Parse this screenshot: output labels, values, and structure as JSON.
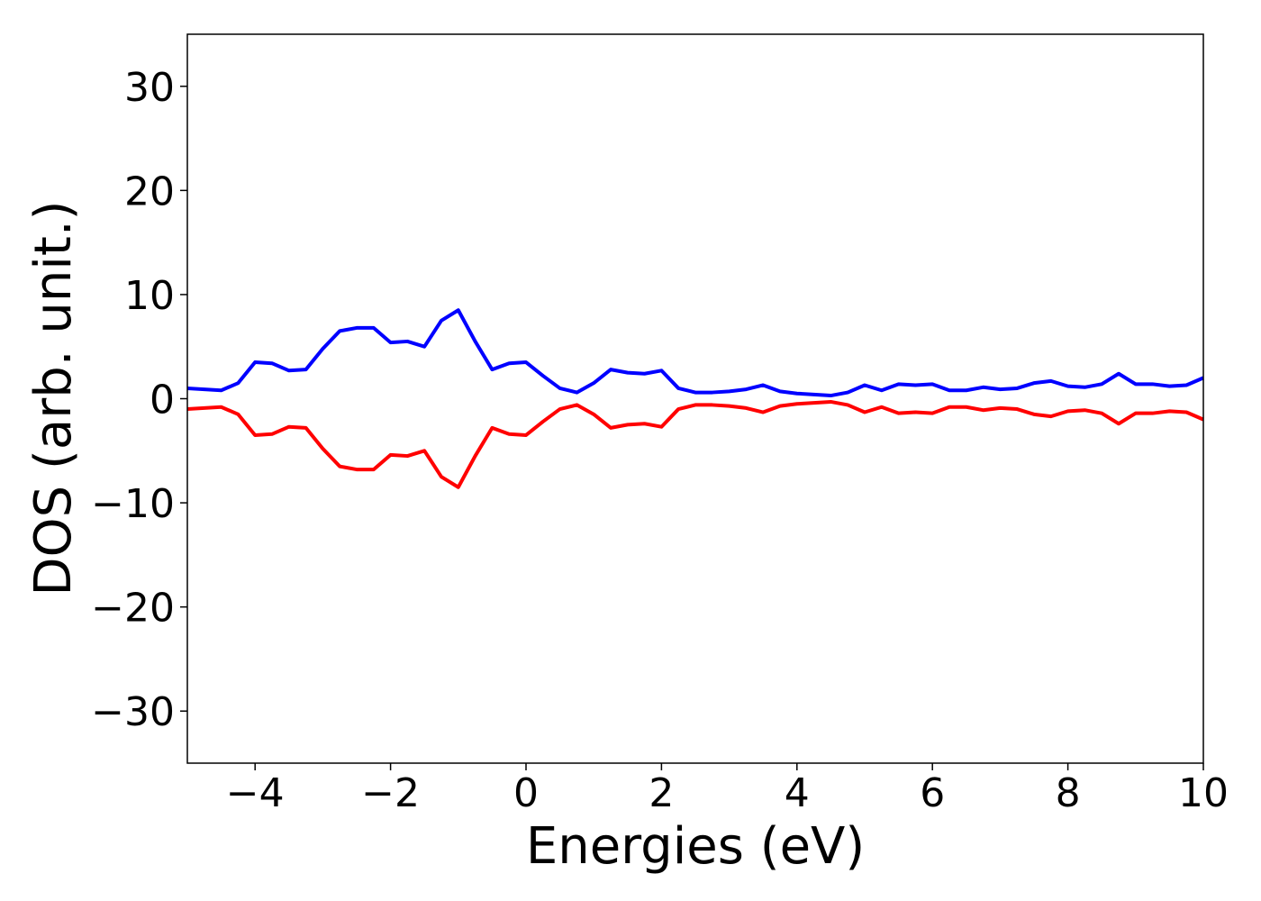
{
  "chart_data": {
    "type": "line",
    "xlabel": "Energies (eV)",
    "ylabel": "DOS (arb. unit.)",
    "x": [
      -5,
      -4.75,
      -4.5,
      -4.25,
      -4,
      -3.75,
      -3.5,
      -3.25,
      -3,
      -2.75,
      -2.5,
      -2.25,
      -2,
      -1.75,
      -1.5,
      -1.25,
      -1,
      -0.75,
      -0.5,
      -0.25,
      0,
      0.25,
      0.5,
      0.75,
      1,
      1.25,
      1.5,
      1.75,
      2,
      2.25,
      2.5,
      2.75,
      3,
      3.25,
      3.5,
      3.75,
      4,
      4.25,
      4.5,
      4.75,
      5,
      5.25,
      5.5,
      5.75,
      6,
      6.25,
      6.5,
      6.75,
      7,
      7.25,
      7.5,
      7.75,
      8,
      8.25,
      8.5,
      8.75,
      9,
      9.25,
      9.5,
      9.75,
      10
    ],
    "series": [
      {
        "color": "#0000ff",
        "values": [
          1.0,
          0.9,
          0.8,
          1.5,
          3.5,
          3.4,
          2.7,
          2.8,
          4.8,
          6.5,
          6.8,
          6.8,
          5.4,
          5.5,
          5.0,
          7.5,
          8.5,
          5.5,
          2.8,
          3.4,
          3.5,
          2.2,
          1.0,
          0.6,
          1.5,
          2.8,
          2.5,
          2.4,
          2.7,
          1.0,
          0.6,
          0.6,
          0.7,
          0.9,
          1.3,
          0.7,
          0.5,
          0.4,
          0.3,
          0.6,
          1.3,
          0.8,
          1.4,
          1.3,
          1.4,
          0.8,
          0.8,
          1.1,
          0.9,
          1.0,
          1.5,
          1.7,
          1.2,
          1.1,
          1.4,
          2.4,
          1.4,
          1.4,
          1.2,
          1.3,
          2.0
        ]
      },
      {
        "color": "#ff0000",
        "values": [
          -1.0,
          -0.9,
          -0.8,
          -1.5,
          -3.5,
          -3.4,
          -2.7,
          -2.8,
          -4.8,
          -6.5,
          -6.8,
          -6.8,
          -5.4,
          -5.5,
          -5.0,
          -7.5,
          -8.5,
          -5.5,
          -2.8,
          -3.4,
          -3.5,
          -2.2,
          -1.0,
          -0.6,
          -1.5,
          -2.8,
          -2.5,
          -2.4,
          -2.7,
          -1.0,
          -0.6,
          -0.6,
          -0.7,
          -0.9,
          -1.3,
          -0.7,
          -0.5,
          -0.4,
          -0.3,
          -0.6,
          -1.3,
          -0.8,
          -1.4,
          -1.3,
          -1.4,
          -0.8,
          -0.8,
          -1.1,
          -0.9,
          -1.0,
          -1.5,
          -1.7,
          -1.2,
          -1.1,
          -1.4,
          -2.4,
          -1.4,
          -1.4,
          -1.2,
          -1.3,
          -2.0
        ]
      }
    ],
    "xlim": [
      -5,
      10
    ],
    "xticks": [
      {
        "value": -4,
        "label": "−4"
      },
      {
        "value": -2,
        "label": "−2"
      },
      0,
      2,
      4,
      6,
      8,
      10
    ],
    "ylim": [
      -35,
      35
    ],
    "yticks": [
      {
        "value": -30,
        "label": "−30"
      },
      {
        "value": -20,
        "label": "−20"
      },
      {
        "value": -10,
        "label": "−10"
      },
      0,
      10,
      20,
      30
    ],
    "grid": false
  }
}
